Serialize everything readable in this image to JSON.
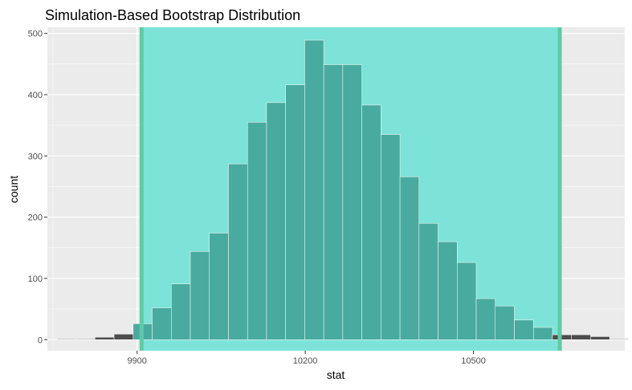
{
  "chart_data": {
    "type": "bar",
    "title": "Simulation-Based Bootstrap Distribution",
    "xlabel": "stat",
    "ylabel": "count",
    "xlim": [
      9740,
      10770
    ],
    "ylim": [
      -18,
      510
    ],
    "x_ticks": [
      9900,
      10200,
      10500
    ],
    "y_ticks": [
      0,
      100,
      200,
      300,
      400,
      500
    ],
    "grid": true,
    "background": "#ebebeb",
    "bin_width": 34,
    "bins": [
      {
        "x": 9774,
        "count": 1
      },
      {
        "x": 9808,
        "count": 1
      },
      {
        "x": 9842,
        "count": 4
      },
      {
        "x": 9876,
        "count": 9
      },
      {
        "x": 9910,
        "count": 26
      },
      {
        "x": 9944,
        "count": 52
      },
      {
        "x": 9978,
        "count": 91
      },
      {
        "x": 10012,
        "count": 144
      },
      {
        "x": 10046,
        "count": 174
      },
      {
        "x": 10080,
        "count": 287
      },
      {
        "x": 10114,
        "count": 355
      },
      {
        "x": 10148,
        "count": 387
      },
      {
        "x": 10182,
        "count": 416
      },
      {
        "x": 10216,
        "count": 489
      },
      {
        "x": 10250,
        "count": 449
      },
      {
        "x": 10284,
        "count": 449
      },
      {
        "x": 10318,
        "count": 383
      },
      {
        "x": 10352,
        "count": 335
      },
      {
        "x": 10386,
        "count": 266
      },
      {
        "x": 10420,
        "count": 190
      },
      {
        "x": 10454,
        "count": 160
      },
      {
        "x": 10488,
        "count": 126
      },
      {
        "x": 10522,
        "count": 67
      },
      {
        "x": 10556,
        "count": 55
      },
      {
        "x": 10590,
        "count": 32
      },
      {
        "x": 10624,
        "count": 20
      },
      {
        "x": 10658,
        "count": 8
      },
      {
        "x": 10692,
        "count": 8
      },
      {
        "x": 10726,
        "count": 5
      },
      {
        "x": 10760,
        "count": 1
      }
    ],
    "ci": {
      "lower": 9908,
      "upper": 10654
    },
    "colors": {
      "bar_outside": "#4d4d4d",
      "bar_inside": "#49ab9f",
      "bar_outline": "#ffffff",
      "ci_fill": "#7de3d8",
      "ci_line": "#5ecba7",
      "grid": "#ffffff"
    }
  }
}
